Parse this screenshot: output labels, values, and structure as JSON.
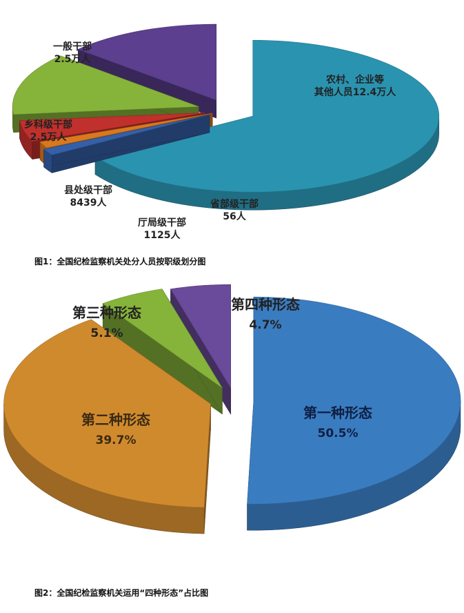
{
  "chart_data": [
    {
      "type": "pie",
      "title": "",
      "caption": "图1：全国纪检监察机关处分人员按职级划分图",
      "slices": [
        {
          "name": "农村、企业等其他人员",
          "label_line1": "农村、企业等",
          "label_line2": "其他人员12.4万人",
          "value": 124000,
          "color": "#2a93b0"
        },
        {
          "name": "省部级干部",
          "label_line1": "省部级干部",
          "label_line2": "56人",
          "value": 56,
          "color": "#3560a8"
        },
        {
          "name": "厅局级干部",
          "label_line1": "厅局级干部",
          "label_line2": "1125人",
          "value": 1125,
          "color": "#d9781f"
        },
        {
          "name": "县处级干部",
          "label_line1": "县处级干部",
          "label_line2": "8439人",
          "value": 8439,
          "color": "#c0302c"
        },
        {
          "name": "乡科级干部",
          "label_line1": "乡科级干部",
          "label_line2": "2.5万人",
          "value": 25000,
          "color": "#86b43a"
        },
        {
          "name": "一般干部",
          "label_line1": "一般干部",
          "label_line2": "2.5万人",
          "value": 25000,
          "color": "#5c3f8f"
        }
      ]
    },
    {
      "type": "pie",
      "title": "",
      "caption": "图2：全国纪检监察机关运用“四种形态”占比图",
      "slices": [
        {
          "name": "第一种形态",
          "pct_label": "50.5%",
          "value": 50.5,
          "color": "#3a7cc0"
        },
        {
          "name": "第二种形态",
          "pct_label": "39.7%",
          "value": 39.7,
          "color": "#d08a2e"
        },
        {
          "name": "第三种形态",
          "pct_label": "5.1%",
          "value": 5.1,
          "color": "#86b43a"
        },
        {
          "name": "第四种形态",
          "pct_label": "4.7%",
          "value": 4.7,
          "color": "#6a4a9a"
        }
      ]
    }
  ]
}
